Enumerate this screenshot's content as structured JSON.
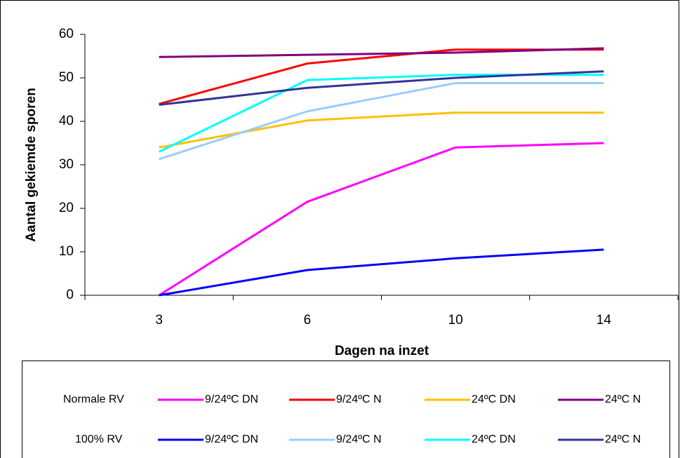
{
  "chart_data": {
    "type": "line",
    "y_label": "Aantal gekiemde sporen",
    "x_label": "Dagen na inzet",
    "categories": [
      "3",
      "6",
      "10",
      "14"
    ],
    "ylim": [
      0,
      60
    ],
    "yticks": [
      0,
      10,
      20,
      30,
      40,
      50,
      60
    ],
    "grid": false,
    "legend_groups": [
      "Normale RV",
      "100% RV"
    ],
    "series": [
      {
        "name": "9/24ºC DN",
        "color": "#ff00ff",
        "values": [
          0,
          21.5,
          34,
          35
        ]
      },
      {
        "name": "9/24ºC N",
        "color": "#ff0000",
        "values": [
          44,
          53.3,
          56.5,
          56.5
        ]
      },
      {
        "name": "24ºC DN",
        "color": "#ffc000",
        "values": [
          34,
          40.2,
          42,
          42
        ]
      },
      {
        "name": "24ºC N",
        "color": "#800080",
        "values": [
          54.8,
          55.3,
          55.8,
          56.8
        ]
      },
      {
        "name": "9/24ºC DN",
        "color": "#0000ff",
        "values": [
          0,
          5.8,
          8.5,
          10.5
        ]
      },
      {
        "name": "9/24ºC N",
        "color": "#99ccff",
        "values": [
          31.3,
          42.3,
          48.8,
          48.8
        ]
      },
      {
        "name": "24ºC DN",
        "color": "#00ffff",
        "values": [
          33,
          49.5,
          50.7,
          50.7
        ]
      },
      {
        "name": "24ºC N",
        "color": "#333399",
        "values": [
          43.8,
          47.7,
          50,
          51.5
        ]
      }
    ]
  }
}
